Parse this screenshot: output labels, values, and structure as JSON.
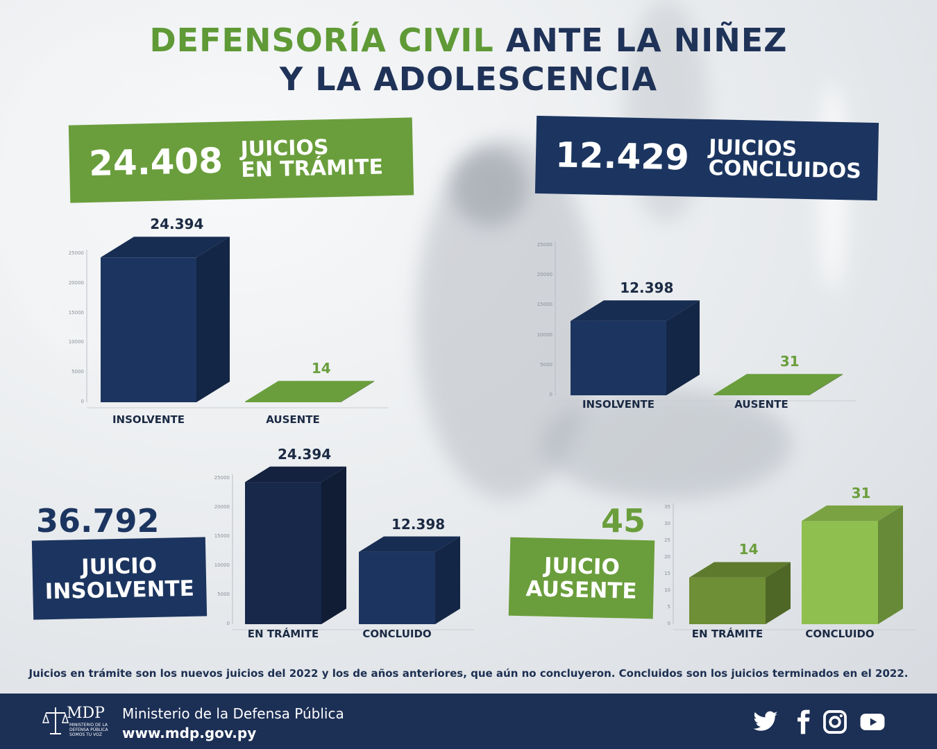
{
  "title": {
    "green": "DEFENSORÍA CIVIL",
    "navy_line1": "ANTE LA NIÑEZ",
    "line2": "Y LA ADOLESCENCIA"
  },
  "colors": {
    "navy": "#1c3560",
    "green": "#6a9e3c",
    "light_green": "#8fbf4f",
    "olive": "#6e8f35"
  },
  "banners": {
    "tramite": {
      "number": "24.408",
      "label_line1": "JUICIOS",
      "label_line2": "EN TRÁMITE"
    },
    "concluidos": {
      "number": "12.429",
      "label_line1": "JUICIOS",
      "label_line2": "CONCLUIDOS"
    },
    "insolvente": {
      "number": "36.792",
      "label_line1": "JUICIO",
      "label_line2": "INSOLVENTE"
    },
    "ausente": {
      "number": "45",
      "label_line1": "JUICIO",
      "label_line2": "AUSENTE"
    }
  },
  "chart_data": [
    {
      "id": "tramite",
      "type": "bar",
      "categories": [
        "INSOLVENTE",
        "AUSENTE"
      ],
      "values": [
        24394,
        14
      ],
      "value_labels": [
        "24.394",
        "14"
      ],
      "ylim": [
        0,
        25000
      ],
      "yticks": [
        0,
        5000,
        10000,
        15000,
        20000,
        25000
      ],
      "bar_colors": [
        "#1c3560",
        "#6a9e3c"
      ]
    },
    {
      "id": "concluidos",
      "type": "bar",
      "categories": [
        "INSOLVENTE",
        "AUSENTE"
      ],
      "values": [
        12398,
        31
      ],
      "value_labels": [
        "12.398",
        "31"
      ],
      "ylim": [
        0,
        25000
      ],
      "yticks": [
        0,
        5000,
        10000,
        15000,
        20000,
        25000
      ],
      "bar_colors": [
        "#1c3560",
        "#6a9e3c"
      ]
    },
    {
      "id": "insolvente",
      "type": "bar",
      "categories": [
        "EN TRÁMITE",
        "CONCLUIDO"
      ],
      "values": [
        24394,
        12398
      ],
      "value_labels": [
        "24.394",
        "12.398"
      ],
      "ylim": [
        0,
        25000
      ],
      "yticks": [
        0,
        5000,
        10000,
        15000,
        20000,
        25000
      ],
      "bar_colors": [
        "#17284a",
        "#1c3560"
      ]
    },
    {
      "id": "ausente",
      "type": "bar",
      "categories": [
        "EN TRÁMITE",
        "CONCLUIDO"
      ],
      "values": [
        14,
        31
      ],
      "value_labels": [
        "14",
        "31"
      ],
      "ylim": [
        0,
        35
      ],
      "yticks": [
        0,
        5,
        10,
        15,
        20,
        25,
        30,
        35
      ],
      "bar_colors": [
        "#6e8f35",
        "#8fbf4f"
      ]
    }
  ],
  "caption": "Juicios en trámite son los nuevos juicios del 2022 y los de años anteriores, que aún no concluyeron. Concluidos son los juicios terminados en el 2022.",
  "footer": {
    "logo_text": "MDP",
    "logo_sub": "MINISTERIO DE LA DEFENSA PÚBLICA SOMOS TU VOZ",
    "org_name": "Ministerio de la Defensa Pública",
    "url": "www.mdp.gov.py",
    "social_icons": [
      "twitter-icon",
      "facebook-icon",
      "instagram-icon",
      "youtube-icon"
    ]
  }
}
